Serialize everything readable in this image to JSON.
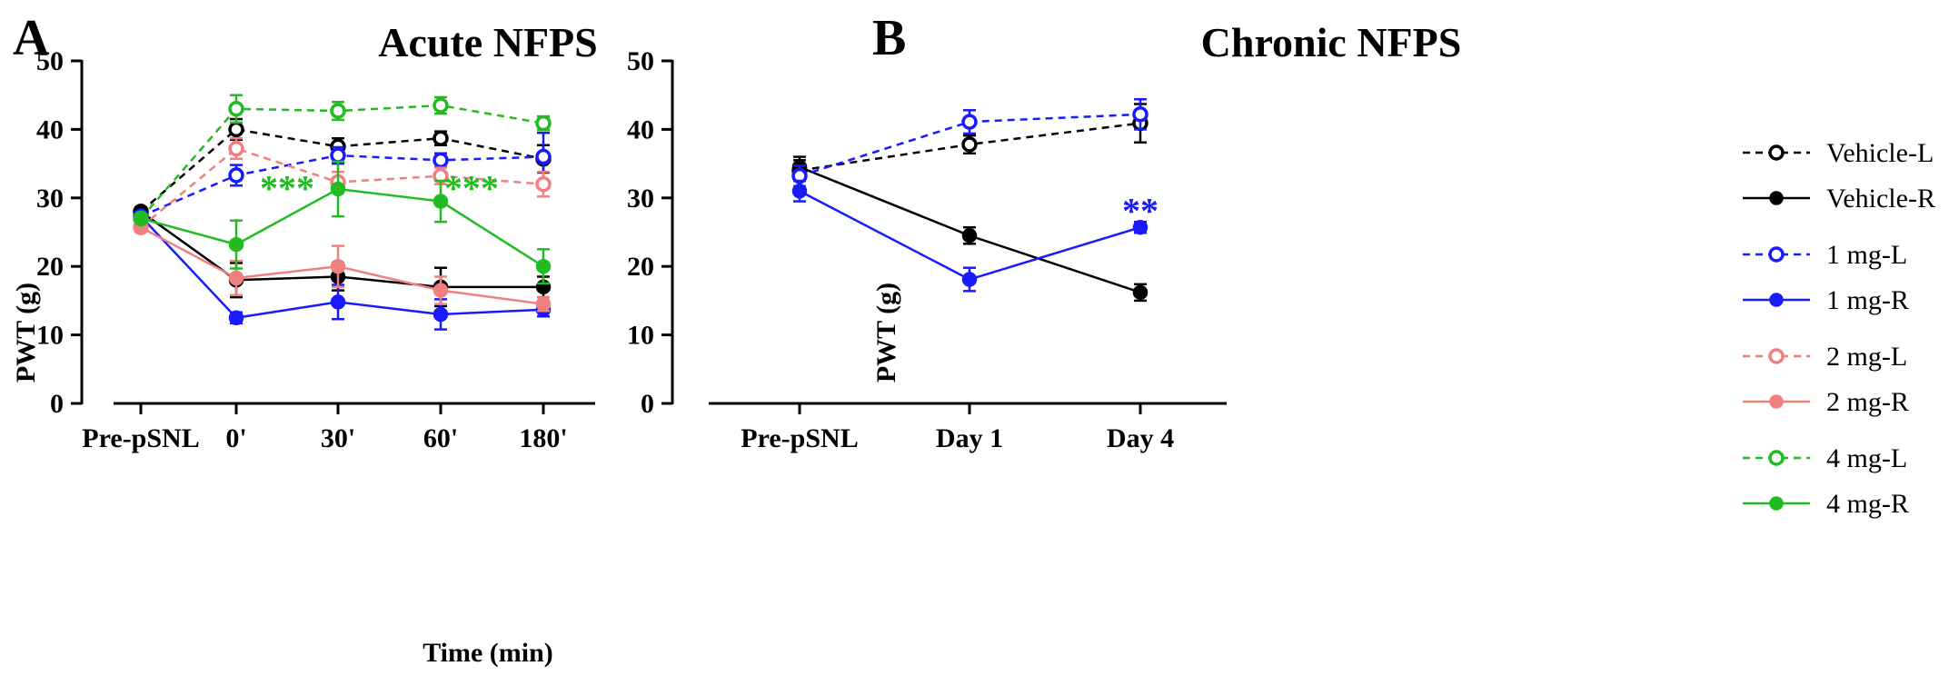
{
  "legend": [
    {
      "name": "Vehicle-L",
      "color": "#000000",
      "dashed": true,
      "open": true
    },
    {
      "name": "Vehicle-R",
      "color": "#000000",
      "dashed": false,
      "open": false
    },
    {
      "name": "1 mg-L",
      "color": "#1a1aff",
      "dashed": true,
      "open": true
    },
    {
      "name": "1 mg-R",
      "color": "#1a1aff",
      "dashed": false,
      "open": false
    },
    {
      "name": "2 mg-L",
      "color": "#f08080",
      "dashed": true,
      "open": true
    },
    {
      "name": "2 mg-R",
      "color": "#f08080",
      "dashed": false,
      "open": false
    },
    {
      "name": "4 mg-L",
      "color": "#22bb22",
      "dashed": true,
      "open": true
    },
    {
      "name": "4 mg-R",
      "color": "#22bb22",
      "dashed": false,
      "open": false
    }
  ],
  "chart_data": [
    {
      "panel": "A",
      "type": "line",
      "title": "Acute NFPS",
      "xlabel": "Time (min)",
      "ylabel": "PWT (g)",
      "ylim": [
        0,
        50
      ],
      "yticks": [
        0,
        10,
        20,
        30,
        40,
        50
      ],
      "categories": [
        "Pre-pSNL",
        "0'",
        "30'",
        "60'",
        "180'"
      ],
      "series": [
        {
          "name": "Vehicle-L",
          "values": [
            28.0,
            40.0,
            37.5,
            38.7,
            35.7
          ],
          "errors": [
            0.6,
            1.5,
            1.2,
            1.0,
            2.0
          ]
        },
        {
          "name": "Vehicle-R",
          "values": [
            28.0,
            18.0,
            18.5,
            17.0,
            17.0
          ],
          "errors": [
            0.6,
            2.5,
            2.0,
            2.8,
            1.5
          ]
        },
        {
          "name": "1 mg-L",
          "values": [
            27.3,
            33.3,
            36.2,
            35.5,
            36.0
          ],
          "errors": [
            0.6,
            1.5,
            1.2,
            1.0,
            3.5
          ]
        },
        {
          "name": "1 mg-R",
          "values": [
            27.3,
            12.5,
            14.8,
            13.0,
            13.7
          ],
          "errors": [
            0.6,
            0.8,
            2.5,
            2.2,
            1.0
          ]
        },
        {
          "name": "2 mg-L",
          "values": [
            25.7,
            37.2,
            32.3,
            33.2,
            32.0
          ],
          "errors": [
            0.6,
            1.5,
            1.5,
            1.2,
            1.8
          ]
        },
        {
          "name": "2 mg-R",
          "values": [
            25.7,
            18.3,
            20.0,
            16.5,
            14.5
          ],
          "errors": [
            0.6,
            2.5,
            3.0,
            2.0,
            1.0
          ]
        },
        {
          "name": "4 mg-L",
          "values": [
            27.0,
            43.0,
            42.7,
            43.5,
            40.9
          ],
          "errors": [
            0.6,
            2.0,
            1.3,
            1.2,
            1.0
          ]
        },
        {
          "name": "4 mg-R",
          "values": [
            27.0,
            23.2,
            31.3,
            29.5,
            20.0
          ],
          "errors": [
            0.6,
            3.5,
            4.0,
            3.0,
            2.5
          ]
        }
      ],
      "annotations": [
        {
          "text": "***",
          "x_index": 1.5,
          "y": 31.5,
          "color": "#22bb22"
        },
        {
          "text": "***",
          "x_index": 3.3,
          "y": 31.5,
          "color": "#22bb22"
        }
      ]
    },
    {
      "panel": "B",
      "type": "line",
      "title": "Chronic NFPS",
      "xlabel": "",
      "ylabel": "PWT (g)",
      "ylim": [
        0,
        50
      ],
      "yticks": [
        0,
        10,
        20,
        30,
        40,
        50
      ],
      "categories": [
        "Pre-pSNL",
        "Day 1",
        "Day 4"
      ],
      "series": [
        {
          "name": "Vehicle-L",
          "values": [
            34.0,
            37.8,
            40.9
          ],
          "errors": [
            1.5,
            1.3,
            2.8
          ]
        },
        {
          "name": "Vehicle-R",
          "values": [
            34.5,
            24.5,
            16.2
          ],
          "errors": [
            1.5,
            1.2,
            1.2
          ]
        },
        {
          "name": "1 mg-L",
          "values": [
            33.2,
            41.1,
            42.2
          ],
          "errors": [
            1.5,
            1.7,
            2.2
          ]
        },
        {
          "name": "1 mg-R",
          "values": [
            31.0,
            18.1,
            25.7
          ],
          "errors": [
            1.5,
            1.7,
            0.8
          ]
        }
      ],
      "annotations": [
        {
          "text": "**",
          "x_index": 2,
          "y": 28.2,
          "color": "#1a1aff"
        }
      ]
    }
  ]
}
